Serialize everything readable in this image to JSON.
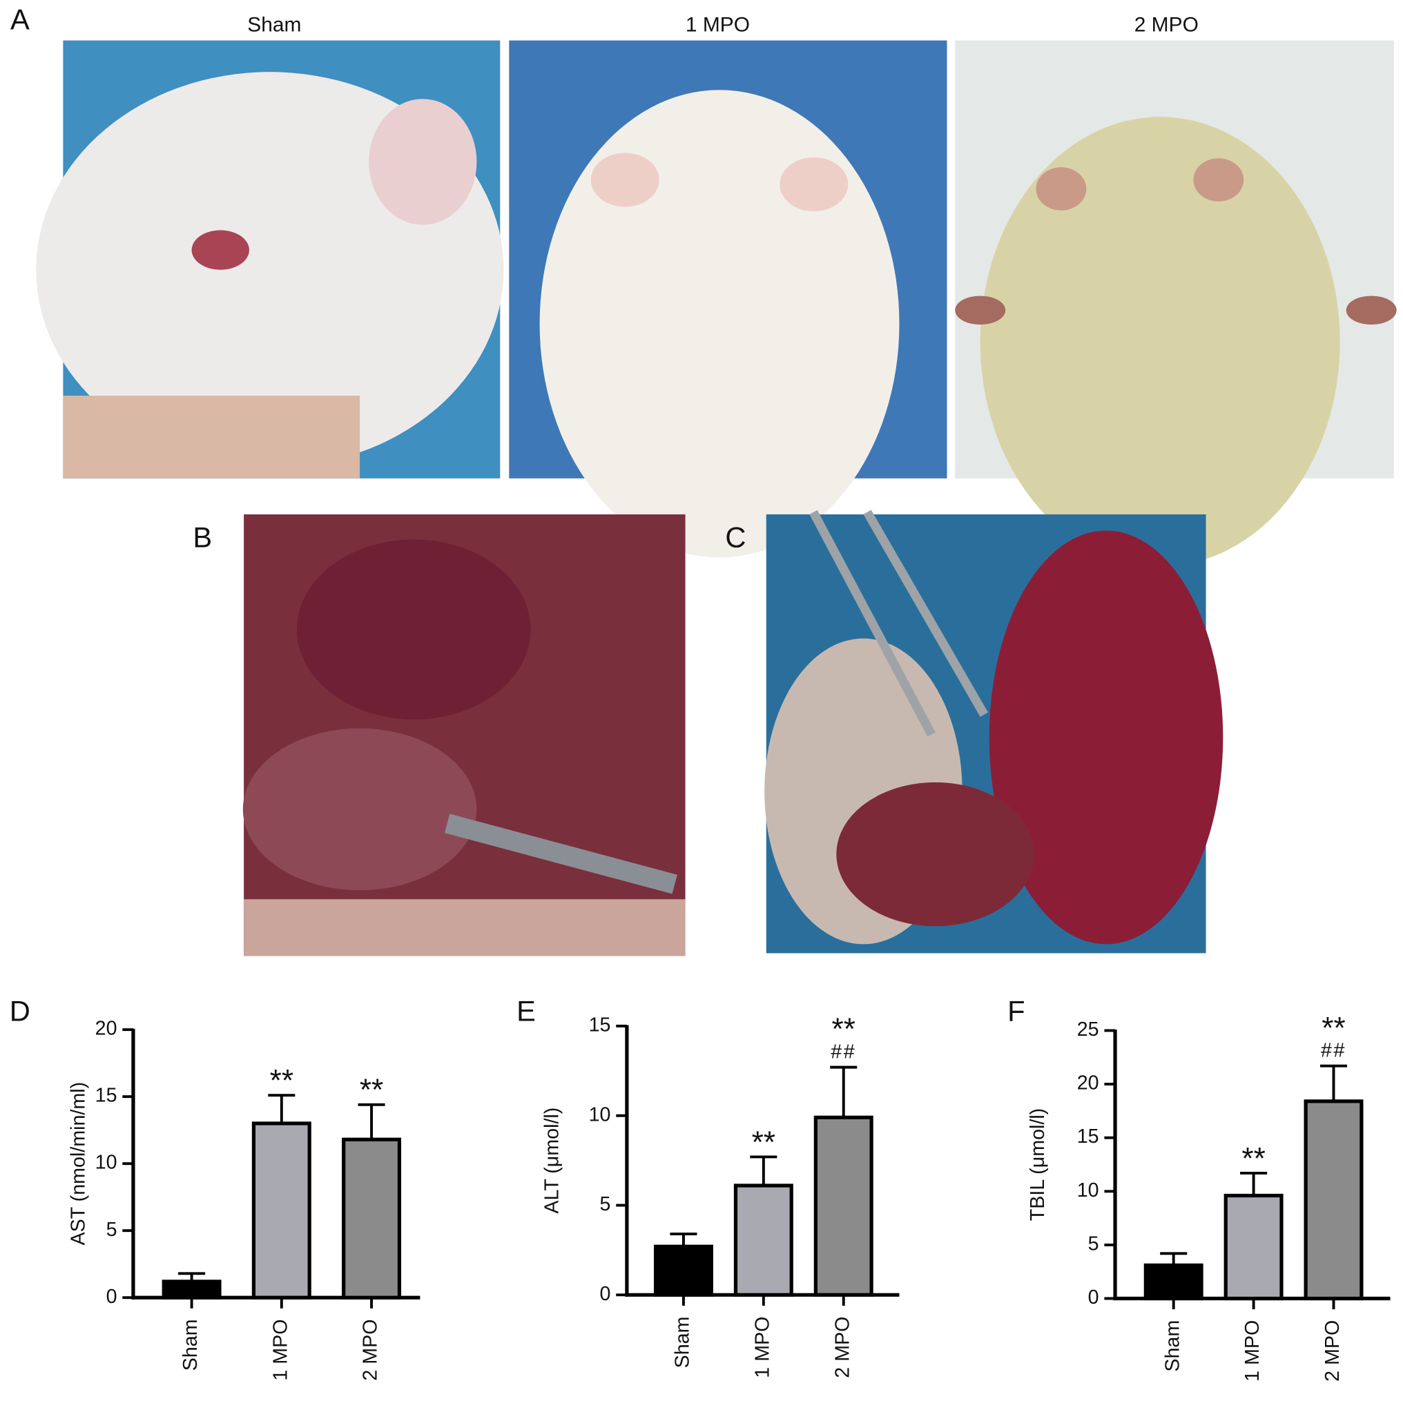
{
  "panel_labels": [
    "A",
    "B",
    "C",
    "D",
    "E",
    "F"
  ],
  "photo_titles": [
    "Sham",
    "1 MPO",
    "2 MPO"
  ],
  "chart_data": [
    {
      "type": "bar",
      "ylabel": "AST (nmol/min/ml)",
      "categories": [
        "Sham",
        "1 MPO",
        "2 MPO"
      ],
      "values": [
        1.2,
        13.0,
        11.8
      ],
      "errors": [
        0.6,
        2.1,
        2.6
      ],
      "colors": [
        "#000000",
        "#a9a9b1",
        "#8b8b8b"
      ],
      "annotations": [
        null,
        "**",
        "**"
      ],
      "annotations2": [
        null,
        null,
        null
      ],
      "ylim": [
        0,
        20
      ],
      "yticks": [
        0,
        5,
        10,
        15,
        20
      ]
    },
    {
      "type": "bar",
      "ylabel": "ALT (μmol/l)",
      "categories": [
        "Sham",
        "1 MPO",
        "2 MPO"
      ],
      "values": [
        2.7,
        6.1,
        9.9
      ],
      "errors": [
        0.7,
        1.6,
        2.8
      ],
      "colors": [
        "#000000",
        "#a9a9b1",
        "#8b8b8b"
      ],
      "annotations": [
        null,
        "**",
        "**"
      ],
      "annotations2": [
        null,
        null,
        "##"
      ],
      "ylim": [
        0,
        15
      ],
      "yticks": [
        0,
        5,
        10,
        15
      ]
    },
    {
      "type": "bar",
      "ylabel": "TBIL (μmol/l)",
      "categories": [
        "Sham",
        "1 MPO",
        "2 MPO"
      ],
      "values": [
        3.1,
        9.6,
        18.4
      ],
      "errors": [
        1.1,
        2.1,
        3.3
      ],
      "colors": [
        "#000000",
        "#a9a9b1",
        "#8b8b8b"
      ],
      "annotations": [
        null,
        "**",
        "**"
      ],
      "annotations2": [
        null,
        null,
        "##"
      ],
      "ylim": [
        0,
        25
      ],
      "yticks": [
        0,
        5,
        10,
        15,
        20,
        25
      ]
    }
  ]
}
